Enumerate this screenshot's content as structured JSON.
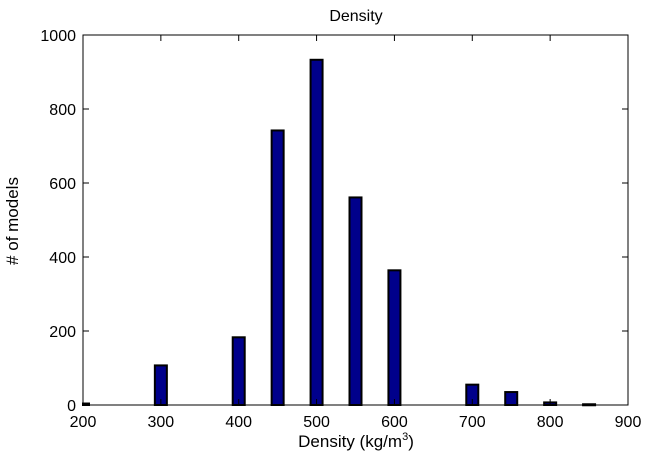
{
  "chart_data": {
    "type": "bar",
    "title": "Density",
    "xlabel": "Density (kg/m",
    "xlabel_superscript": "3",
    "xlabel_suffix": ")",
    "ylabel": "# of models",
    "xlim": [
      200,
      900
    ],
    "ylim": [
      0,
      1000
    ],
    "xticks": [
      200,
      300,
      400,
      500,
      600,
      700,
      800,
      900
    ],
    "yticks": [
      0,
      200,
      400,
      600,
      800,
      1000
    ],
    "grid": false,
    "bar_color": "#00008b",
    "bar_edge_color": "#000000",
    "x": [
      200,
      300,
      400,
      450,
      500,
      550,
      600,
      700,
      750,
      800,
      850
    ],
    "values": [
      4,
      107,
      183,
      742,
      933,
      561,
      364,
      55,
      35,
      7,
      2
    ]
  }
}
